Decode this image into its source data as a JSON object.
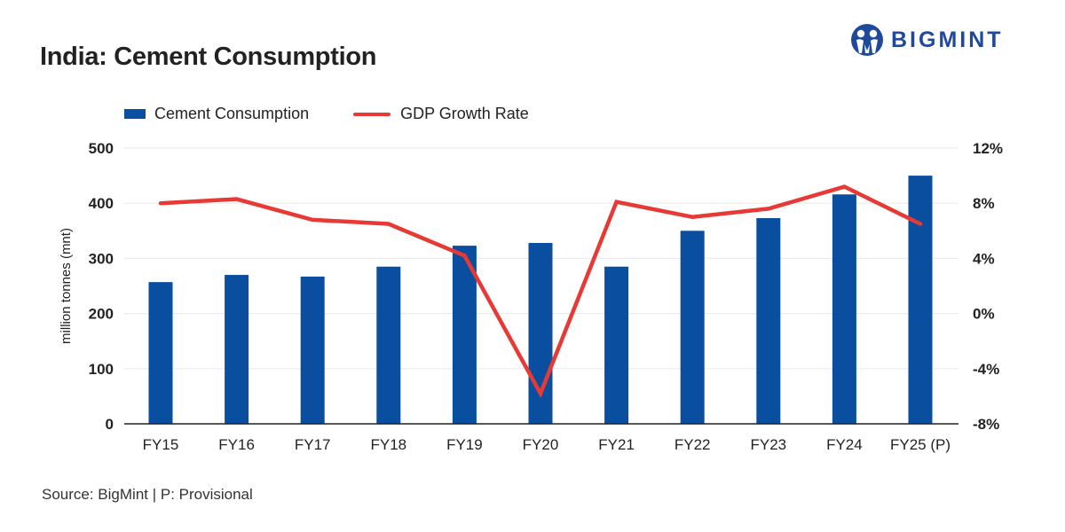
{
  "header": {
    "title": "India: Cement Consumption",
    "brand": "BIGMINT",
    "logo_icon": "bigmint-people-logo-icon"
  },
  "footer": {
    "source": "Source: BigMint | P: Provisional"
  },
  "colors": {
    "bar": "#0a4ea0",
    "line": "#e83a35",
    "brand": "#1f4a9c",
    "grid": "#ececec",
    "axis": "#222222"
  },
  "chart_data": {
    "type": "bar",
    "title": "India: Cement Consumption",
    "categories": [
      "FY15",
      "FY16",
      "FY17",
      "FY18",
      "FY19",
      "FY20",
      "FY21",
      "FY22",
      "FY23",
      "FY24",
      "FY25 (P)"
    ],
    "series": [
      {
        "name": "Cement Consumption",
        "type": "bar",
        "axis": "left",
        "values": [
          257,
          270,
          267,
          285,
          323,
          328,
          285,
          350,
          373,
          416,
          450
        ]
      },
      {
        "name": "GDP Growth Rate",
        "type": "line",
        "axis": "right",
        "unit": "%",
        "values": [
          8.0,
          8.3,
          6.8,
          6.5,
          4.2,
          -5.8,
          8.1,
          7.0,
          7.6,
          9.2,
          6.5
        ]
      }
    ],
    "ylabel": "million tonnes (mnt)",
    "ylim": [
      0,
      500
    ],
    "yticks": [
      "0",
      "100",
      "200",
      "300",
      "400",
      "500"
    ],
    "y2lim": [
      -8,
      12
    ],
    "y2ticks": [
      "-8%",
      "-4%",
      "0%",
      "4%",
      "8%",
      "12%"
    ],
    "xlabel": "",
    "grid": true,
    "legend": {
      "placement": "top-left",
      "entries": [
        "Cement Consumption",
        "GDP Growth Rate"
      ]
    }
  }
}
